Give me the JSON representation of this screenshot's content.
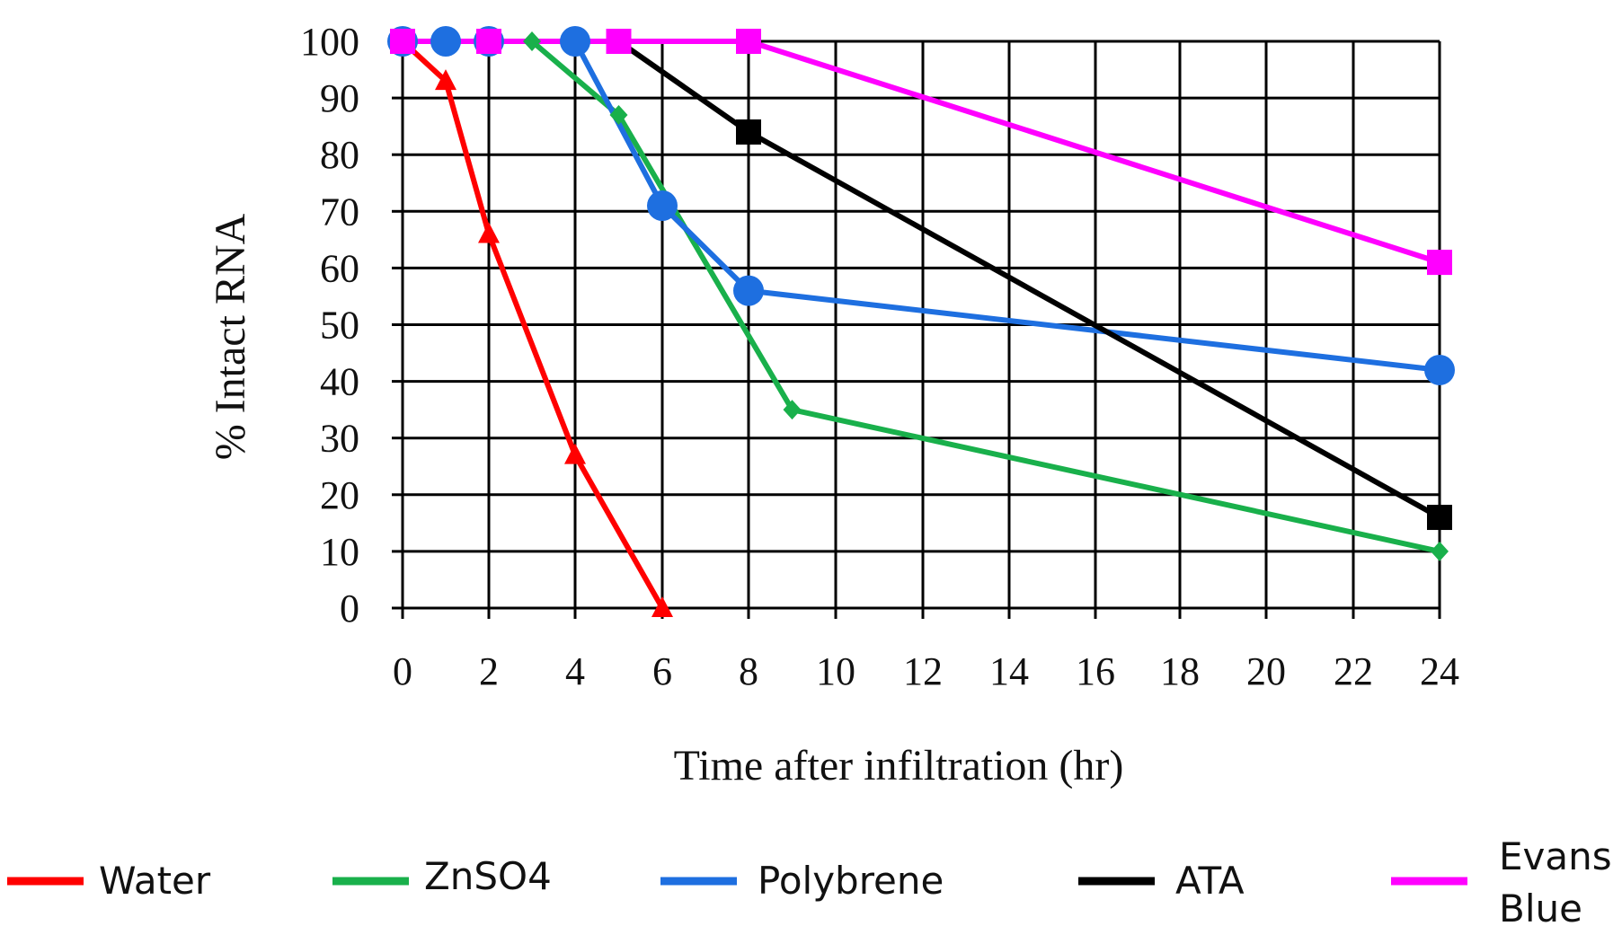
{
  "chart_data": {
    "type": "line",
    "title": "",
    "xlabel": "Time after infiltration (hr)",
    "ylabel": "% Intact RNA",
    "x_ticks": [
      "0",
      "2",
      "4",
      "6",
      "8",
      "10",
      "12",
      "14",
      "16",
      "18",
      "20",
      "22",
      "24"
    ],
    "y_ticks": [
      "0",
      "10",
      "20",
      "30",
      "40",
      "50",
      "60",
      "70",
      "80",
      "90",
      "100"
    ],
    "xlim": [
      0,
      24
    ],
    "ylim": [
      0,
      100
    ],
    "grid": true,
    "legend_position": "bottom",
    "series": [
      {
        "name": "Water",
        "color": "#ff0000",
        "marker": "triangle",
        "points": [
          [
            0,
            100
          ],
          [
            1,
            93
          ],
          [
            2,
            66
          ],
          [
            4,
            27
          ],
          [
            6,
            0
          ]
        ]
      },
      {
        "name": "ZnSO4",
        "color": "#19b04b",
        "marker": "diamond",
        "points": [
          [
            3,
            100
          ],
          [
            5,
            87
          ],
          [
            9,
            35
          ],
          [
            24,
            10
          ]
        ]
      },
      {
        "name": "Polybrene",
        "color": "#1e6fe0",
        "marker": "circle",
        "points": [
          [
            0,
            100
          ],
          [
            1,
            100
          ],
          [
            2,
            100
          ],
          [
            4,
            100
          ],
          [
            6,
            71
          ],
          [
            8,
            56
          ],
          [
            24,
            42
          ]
        ]
      },
      {
        "name": "ATA",
        "color": "#000000",
        "marker": "square",
        "points": [
          [
            5,
            100
          ],
          [
            8,
            84
          ],
          [
            24,
            16
          ]
        ]
      },
      {
        "name": "Evans Blue",
        "color": "#ff00ff",
        "marker": "square",
        "points": [
          [
            0,
            100
          ],
          [
            2,
            100
          ],
          [
            5,
            100
          ],
          [
            8,
            100
          ],
          [
            24,
            61
          ]
        ]
      }
    ],
    "legend": [
      {
        "label": "Water",
        "color": "#ff0000"
      },
      {
        "label": "ZnSO4",
        "color": "#19b04b"
      },
      {
        "label": "Polybrene",
        "color": "#1e6fe0"
      },
      {
        "label": "ATA",
        "color": "#000000"
      },
      {
        "label_line1": "Evans",
        "label_line2": "Blue",
        "color": "#ff00ff"
      }
    ]
  }
}
